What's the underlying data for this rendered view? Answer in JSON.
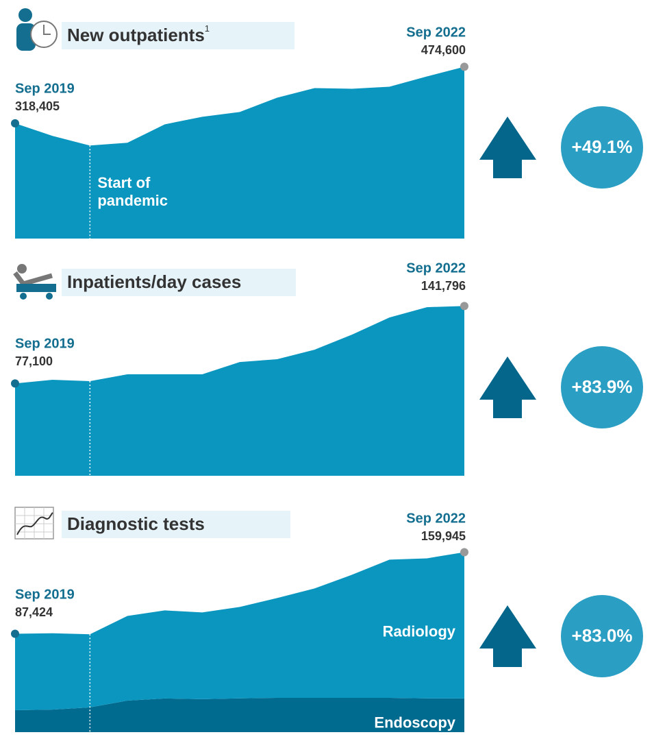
{
  "chart_data": [
    {
      "type": "area",
      "title": "New outpatients",
      "title_note": "1",
      "categories": [
        "Sep 2019",
        null,
        null,
        null,
        null,
        null,
        null,
        null,
        null,
        null,
        null,
        null,
        "Sep 2022"
      ],
      "series": [
        {
          "color": "#0a96bf",
          "values": [
            318405,
            283500,
            257000,
            264600,
            315600,
            336400,
            349700,
            389300,
            415800,
            413900,
            419600,
            448000,
            474600
          ],
          "value_labels": [
            "318,405",
            null,
            null,
            null,
            null,
            null,
            null,
            null,
            null,
            null,
            null,
            null,
            "474,600"
          ]
        }
      ],
      "ylim": [
        0,
        500000
      ],
      "annotation": [
        "Start of",
        "pandemic"
      ],
      "change": {
        "value": 49.1,
        "label": "+49.1%"
      }
    },
    {
      "type": "area",
      "title": "Inpatients/day cases",
      "categories": [
        "Sep 2019",
        null,
        null,
        null,
        null,
        null,
        null,
        null,
        null,
        null,
        null,
        null,
        "Sep 2022"
      ],
      "series": [
        {
          "color": "#0a96bf",
          "values": [
            77100,
            80150,
            79000,
            84700,
            84700,
            84700,
            95000,
            97300,
            105300,
            117900,
            132200,
            140800,
            141796
          ],
          "value_labels": [
            "77,100",
            null,
            null,
            null,
            null,
            null,
            null,
            null,
            null,
            null,
            null,
            null,
            "141,796"
          ]
        }
      ],
      "ylim": [
        0,
        150000
      ],
      "change": {
        "value": 83.9,
        "label": "+83.9%"
      }
    },
    {
      "type": "stacked_area",
      "title": "Diagnostic tests",
      "categories": [
        "Sep 2019",
        null,
        null,
        null,
        null,
        null,
        null,
        null,
        null,
        null,
        null,
        null,
        "Sep 2022"
      ],
      "series": [
        {
          "name": "Endoscopy",
          "color": "#006a8f",
          "values": [
            19500,
            20000,
            22000,
            28000,
            29900,
            29300,
            30000,
            30500,
            30500,
            30500,
            30500,
            30000,
            29900
          ]
        },
        {
          "name": "Radiology",
          "color": "#0a96bf",
          "values": [
            67924,
            67900,
            65000,
            75300,
            78300,
            77100,
            81300,
            88700,
            97200,
            109400,
            122800,
            124500,
            130045
          ]
        }
      ],
      "totals": [
        {
          "value": 87424,
          "label": "87,424"
        },
        {
          "value": 159945,
          "label": "159,945"
        }
      ],
      "ylim": [
        0,
        170000
      ],
      "change": {
        "value": 83.0,
        "label": "+83.0%"
      }
    }
  ]
}
